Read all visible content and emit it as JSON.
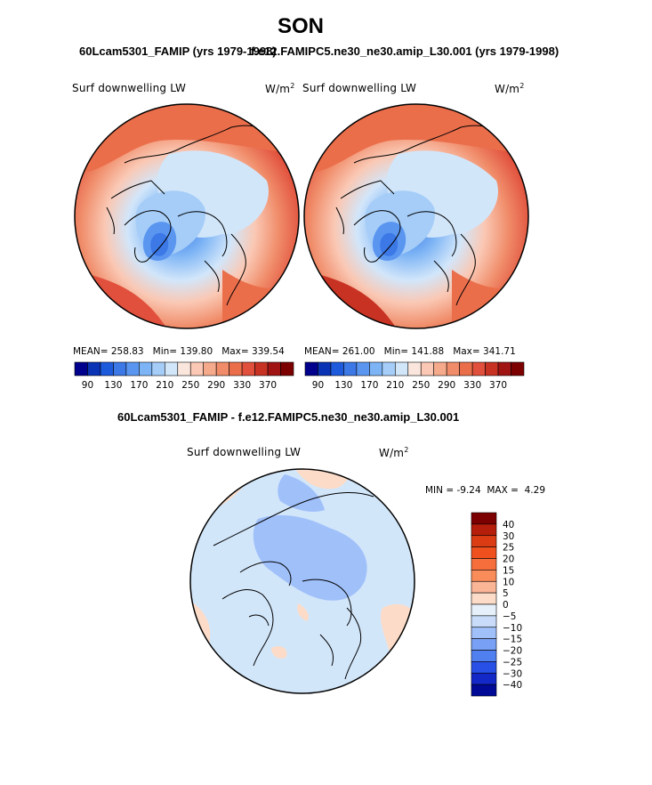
{
  "figure": {
    "title": "SON",
    "left_run_title": "60Lcam5301_FAMIP (yrs 1979-1998)",
    "right_run_title": "f.e12.FAMIPC5.ne30_ne30.amip_L30.001 (yrs 1979-1998)",
    "diff_title": "60Lcam5301_FAMIP - f.e12.FAMIPC5.ne30_ne30.amip_L30.001"
  },
  "panels": {
    "left": {
      "variable": "Surf downwelling LW",
      "units": "W/m",
      "units_sup": "2",
      "mean_label": "MEAN=",
      "mean": "258.83",
      "min_label": "Min=",
      "min": "139.80",
      "max_label": "Max=",
      "max": "339.54"
    },
    "right": {
      "variable": "Surf downwelling LW",
      "units": "W/m",
      "units_sup": "2",
      "mean_label": "MEAN=",
      "mean": "261.00",
      "min_label": "Min=",
      "min": "141.88",
      "max_label": "Max=",
      "max": "341.71"
    },
    "diff": {
      "variable": "Surf downwelling LW",
      "units": "W/m",
      "units_sup": "2",
      "min_label": "MIN =",
      "min": "-9.24",
      "max_label": "MAX =",
      "max": "4.29"
    }
  },
  "colorbar_abs": {
    "ticks": [
      "90",
      "130",
      "170",
      "210",
      "250",
      "290",
      "330",
      "370"
    ],
    "colors": [
      "#00008c",
      "#0a32b4",
      "#1e5adc",
      "#3c78e6",
      "#5a96f0",
      "#7db4f5",
      "#a5cdf8",
      "#d2e6fa",
      "#fae6dc",
      "#fac8b4",
      "#f5aa8c",
      "#f08c69",
      "#eb6e4b",
      "#e1503c",
      "#c83223",
      "#a01414",
      "#7d0000"
    ]
  },
  "colorbar_diff": {
    "labels": [
      "40",
      "30",
      "25",
      "20",
      "15",
      "10",
      "5",
      "0",
      "−5",
      "−10",
      "−15",
      "−20",
      "−25",
      "−30",
      "−40"
    ],
    "colors": [
      "#7d0000",
      "#b41e0a",
      "#dc3c14",
      "#f0501e",
      "#f56e3c",
      "#fa8c5a",
      "#fab496",
      "#fcdcc8",
      "#e6f0fa",
      "#c8dcfa",
      "#a0c0fa",
      "#78a0f5",
      "#5080f0",
      "#2850e6",
      "#1428c8",
      "#000a96"
    ]
  }
}
